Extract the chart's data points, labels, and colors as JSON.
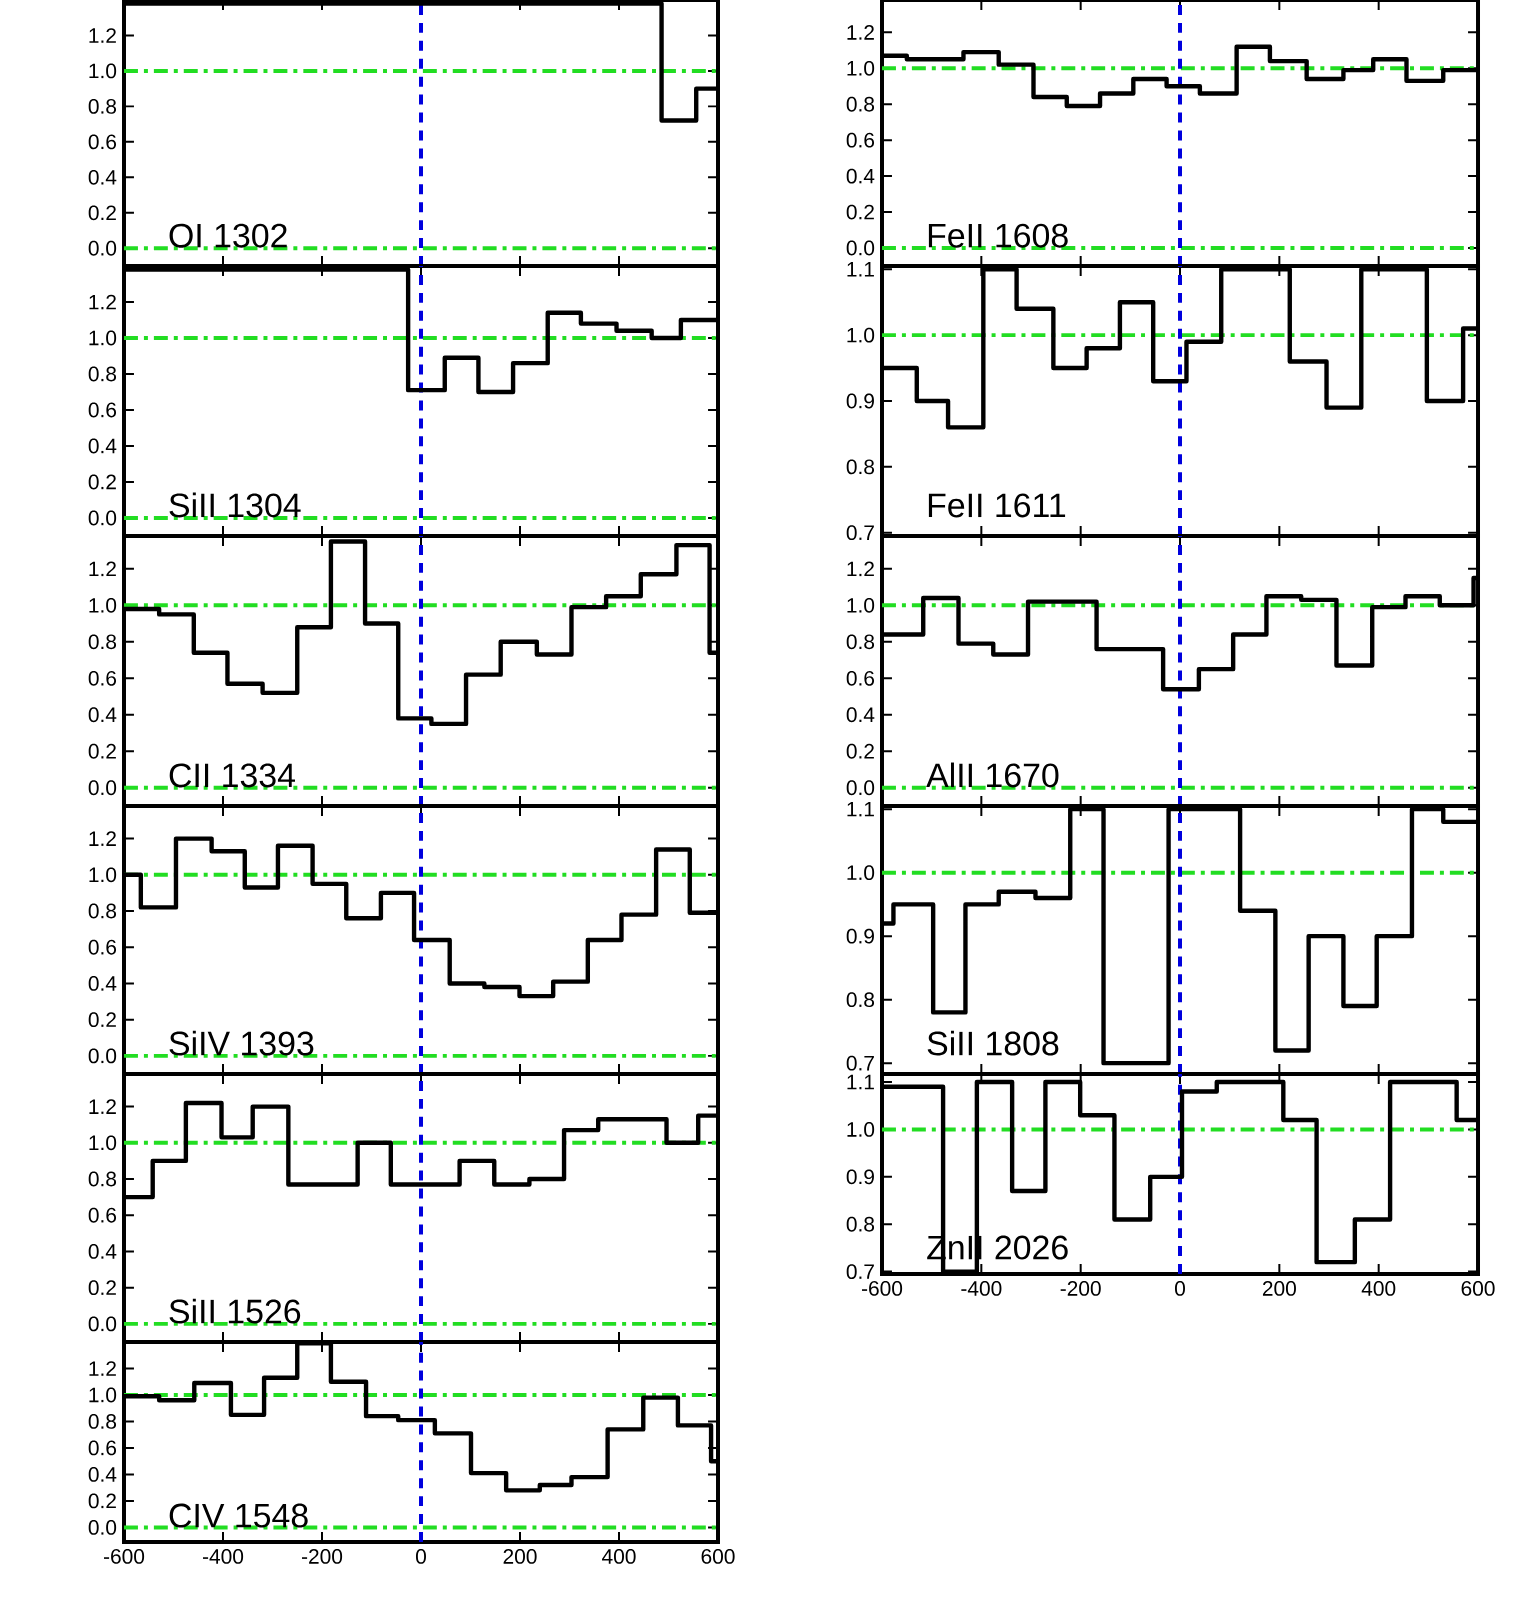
{
  "chart_data": [
    {
      "type": "step",
      "title": "OI 1302",
      "color": "#000000",
      "x": [
        -600,
        486,
        556,
        600
      ],
      "values": [
        1.38,
        0.72,
        0.9,
        0.9
      ],
      "xlim": [
        -600,
        600
      ],
      "ylim": [
        -0.1,
        1.4
      ],
      "tick_labels": "y",
      "xticks": [
        {
          "value": -600,
          "label": null
        },
        {
          "value": -400,
          "label": null
        },
        {
          "value": -200,
          "label": null
        },
        {
          "value": 0,
          "label": null
        },
        {
          "value": 200,
          "label": null
        },
        {
          "value": 400,
          "label": null
        },
        {
          "value": 600,
          "label": null
        }
      ],
      "yticks": [
        {
          "value": 0,
          "label": "0.0"
        },
        {
          "value": 0.2,
          "label": "0.2"
        },
        {
          "value": 0.4,
          "label": "0.4"
        },
        {
          "value": 0.6,
          "label": "0.6"
        },
        {
          "value": 0.8,
          "label": "0.8"
        },
        {
          "value": 1.0,
          "label": "1.0"
        },
        {
          "value": 1.2,
          "label": "1.2"
        }
      ],
      "ref_lines": [
        {
          "axis": "y",
          "value": 0,
          "color": "#22dd22",
          "line_style": "dashdot"
        },
        {
          "axis": "y",
          "value": 1,
          "color": "#22dd22",
          "line_style": "dashdot"
        },
        {
          "axis": "x",
          "value": 0,
          "color": "#0000dd",
          "line_style": "dashed"
        }
      ]
    },
    {
      "type": "step",
      "title": "SiII 1304",
      "color": "#000000",
      "x": [
        -600,
        -26,
        48,
        116,
        186,
        256,
        323,
        395,
        466,
        525,
        600
      ],
      "values": [
        1.38,
        0.71,
        0.89,
        0.7,
        0.86,
        1.14,
        1.08,
        1.04,
        1.0,
        1.1,
        1.1
      ],
      "xlim": [
        -600,
        600
      ],
      "ylim": [
        -0.1,
        1.4
      ],
      "tick_labels": "y",
      "xticks": [
        {
          "value": -600,
          "label": null
        },
        {
          "value": -400,
          "label": null
        },
        {
          "value": -200,
          "label": null
        },
        {
          "value": 0,
          "label": null
        },
        {
          "value": 200,
          "label": null
        },
        {
          "value": 400,
          "label": null
        },
        {
          "value": 600,
          "label": null
        }
      ],
      "yticks": [
        {
          "value": 0,
          "label": "0.0"
        },
        {
          "value": 0.2,
          "label": "0.2"
        },
        {
          "value": 0.4,
          "label": "0.4"
        },
        {
          "value": 0.6,
          "label": "0.6"
        },
        {
          "value": 0.8,
          "label": "0.8"
        },
        {
          "value": 1.0,
          "label": "1.0"
        },
        {
          "value": 1.2,
          "label": "1.2"
        }
      ],
      "ref_lines": [
        {
          "axis": "y",
          "value": 0,
          "color": "#22dd22",
          "line_style": "dashdot"
        },
        {
          "axis": "y",
          "value": 1,
          "color": "#22dd22",
          "line_style": "dashdot"
        },
        {
          "axis": "x",
          "value": 0,
          "color": "#0000dd",
          "line_style": "dashed"
        }
      ]
    },
    {
      "type": "step",
      "title": "CII 1334",
      "color": "#000000",
      "x": [
        -600,
        -529,
        -459,
        -391,
        -320,
        -250,
        -182,
        -113,
        -46,
        21,
        91,
        161,
        234,
        304,
        374,
        444,
        516,
        583,
        600
      ],
      "values": [
        0.98,
        0.95,
        0.74,
        0.57,
        0.52,
        0.88,
        1.35,
        0.9,
        0.38,
        0.35,
        0.62,
        0.8,
        0.73,
        0.99,
        1.05,
        1.17,
        1.33,
        0.74,
        0.74
      ],
      "xlim": [
        -600,
        600
      ],
      "ylim": [
        -0.1,
        1.38
      ],
      "tick_labels": "y",
      "xticks": [
        {
          "value": -600,
          "label": null
        },
        {
          "value": -400,
          "label": null
        },
        {
          "value": -200,
          "label": null
        },
        {
          "value": 0,
          "label": null
        },
        {
          "value": 200,
          "label": null
        },
        {
          "value": 400,
          "label": null
        },
        {
          "value": 600,
          "label": null
        }
      ],
      "yticks": [
        {
          "value": 0,
          "label": "0.0"
        },
        {
          "value": 0.2,
          "label": "0.2"
        },
        {
          "value": 0.4,
          "label": "0.4"
        },
        {
          "value": 0.6,
          "label": "0.6"
        },
        {
          "value": 0.8,
          "label": "0.8"
        },
        {
          "value": 1.0,
          "label": "1.0"
        },
        {
          "value": 1.2,
          "label": "1.2"
        }
      ],
      "ref_lines": [
        {
          "axis": "y",
          "value": 0,
          "color": "#22dd22",
          "line_style": "dashdot"
        },
        {
          "axis": "y",
          "value": 1,
          "color": "#22dd22",
          "line_style": "dashdot"
        },
        {
          "axis": "x",
          "value": 0,
          "color": "#0000dd",
          "line_style": "dashed"
        }
      ]
    },
    {
      "type": "step",
      "title": "SiIV 1393",
      "color": "#000000",
      "x": [
        -600,
        -566,
        -495,
        -423,
        -356,
        -289,
        -219,
        -151,
        -81,
        -14,
        58,
        128,
        199,
        267,
        337,
        405,
        475,
        543,
        600
      ],
      "values": [
        1.0,
        0.82,
        1.2,
        1.13,
        0.93,
        1.16,
        0.95,
        0.76,
        0.9,
        0.64,
        0.4,
        0.38,
        0.33,
        0.41,
        0.64,
        0.78,
        1.14,
        0.79,
        0.79
      ],
      "xlim": [
        -600,
        600
      ],
      "ylim": [
        -0.1,
        1.38
      ],
      "tick_labels": "y",
      "xticks": [
        {
          "value": -600,
          "label": null
        },
        {
          "value": -400,
          "label": null
        },
        {
          "value": -200,
          "label": null
        },
        {
          "value": 0,
          "label": null
        },
        {
          "value": 200,
          "label": null
        },
        {
          "value": 400,
          "label": null
        },
        {
          "value": 600,
          "label": null
        }
      ],
      "yticks": [
        {
          "value": 0,
          "label": "0.0"
        },
        {
          "value": 0.2,
          "label": "0.2"
        },
        {
          "value": 0.4,
          "label": "0.4"
        },
        {
          "value": 0.6,
          "label": "0.6"
        },
        {
          "value": 0.8,
          "label": "0.8"
        },
        {
          "value": 1.0,
          "label": "1.0"
        },
        {
          "value": 1.2,
          "label": "1.2"
        }
      ],
      "ref_lines": [
        {
          "axis": "y",
          "value": 0,
          "color": "#22dd22",
          "line_style": "dashdot"
        },
        {
          "axis": "y",
          "value": 1,
          "color": "#22dd22",
          "line_style": "dashdot"
        },
        {
          "axis": "x",
          "value": 0,
          "color": "#0000dd",
          "line_style": "dashed"
        }
      ]
    },
    {
      "type": "step",
      "title": "SiII 1526",
      "color": "#000000",
      "x": [
        -600,
        -542,
        -475,
        -403,
        -340,
        -268,
        -128,
        -61,
        78,
        148,
        219,
        289,
        358,
        496,
        560,
        600
      ],
      "values": [
        0.7,
        0.9,
        1.22,
        1.03,
        1.2,
        0.77,
        1.0,
        0.77,
        0.9,
        0.77,
        0.8,
        1.07,
        1.13,
        1.0,
        1.15,
        1.15
      ],
      "xlim": [
        -600,
        600
      ],
      "ylim": [
        -0.1,
        1.38
      ],
      "tick_labels": "y",
      "xticks": [
        {
          "value": -600,
          "label": null
        },
        {
          "value": -400,
          "label": null
        },
        {
          "value": -200,
          "label": null
        },
        {
          "value": 0,
          "label": null
        },
        {
          "value": 200,
          "label": null
        },
        {
          "value": 400,
          "label": null
        },
        {
          "value": 600,
          "label": null
        }
      ],
      "yticks": [
        {
          "value": 0,
          "label": "0.0"
        },
        {
          "value": 0.2,
          "label": "0.2"
        },
        {
          "value": 0.4,
          "label": "0.4"
        },
        {
          "value": 0.6,
          "label": "0.6"
        },
        {
          "value": 0.8,
          "label": "0.8"
        },
        {
          "value": 1.0,
          "label": "1.0"
        },
        {
          "value": 1.2,
          "label": "1.2"
        }
      ],
      "ref_lines": [
        {
          "axis": "y",
          "value": 0,
          "color": "#22dd22",
          "line_style": "dashdot"
        },
        {
          "axis": "y",
          "value": 1,
          "color": "#22dd22",
          "line_style": "dashdot"
        },
        {
          "axis": "x",
          "value": 0,
          "color": "#0000dd",
          "line_style": "dashed"
        }
      ]
    },
    {
      "type": "step",
      "title": "CIV 1548",
      "color": "#000000",
      "x": [
        -600,
        -529,
        -458,
        -384,
        -317,
        -250,
        -182,
        -111,
        -46,
        28,
        101,
        172,
        240,
        304,
        377,
        449,
        519,
        586,
        600
      ],
      "values": [
        0.99,
        0.96,
        1.09,
        0.85,
        1.13,
        1.39,
        1.1,
        0.84,
        0.81,
        0.71,
        0.41,
        0.28,
        0.32,
        0.38,
        0.74,
        0.98,
        0.77,
        0.5,
        0.5
      ],
      "xlim": [
        -600,
        600
      ],
      "ylim": [
        -0.11,
        1.4
      ],
      "xticks": [
        {
          "value": -600,
          "label": "-600"
        },
        {
          "value": -400,
          "label": "-400"
        },
        {
          "value": -200,
          "label": "-200"
        },
        {
          "value": 0,
          "label": "0"
        },
        {
          "value": 200,
          "label": "200"
        },
        {
          "value": 400,
          "label": "400"
        },
        {
          "value": 600,
          "label": "600"
        }
      ],
      "yticks": [
        {
          "value": 0,
          "label": "0.0"
        },
        {
          "value": 0.2,
          "label": "0.2"
        },
        {
          "value": 0.4,
          "label": "0.4"
        },
        {
          "value": 0.6,
          "label": "0.6"
        },
        {
          "value": 0.8,
          "label": "0.8"
        },
        {
          "value": 1.0,
          "label": "1.0"
        },
        {
          "value": 1.2,
          "label": "1.2"
        }
      ],
      "ref_lines": [
        {
          "axis": "y",
          "value": 0,
          "color": "#22dd22",
          "line_style": "dashdot"
        },
        {
          "axis": "y",
          "value": 1,
          "color": "#22dd22",
          "line_style": "dashdot"
        },
        {
          "axis": "x",
          "value": 0,
          "color": "#0000dd",
          "line_style": "dashed"
        }
      ]
    },
    {
      "type": "step",
      "title": "FeII 1608",
      "color": "#000000",
      "x": [
        -600,
        -550,
        -436,
        -365,
        -295,
        -228,
        -161,
        -94,
        -27,
        40,
        114,
        181,
        255,
        329,
        389,
        456,
        530,
        600
      ],
      "values": [
        1.07,
        1.05,
        1.09,
        1.02,
        0.84,
        0.79,
        0.86,
        0.94,
        0.9,
        0.86,
        1.12,
        1.04,
        0.94,
        0.99,
        1.05,
        0.93,
        0.99,
        0.99
      ],
      "xlim": [
        -600,
        600
      ],
      "ylim": [
        -0.1,
        1.38
      ],
      "tick_labels": "y",
      "xticks": [
        {
          "value": -600,
          "label": null
        },
        {
          "value": -400,
          "label": null
        },
        {
          "value": -200,
          "label": null
        },
        {
          "value": 0,
          "label": null
        },
        {
          "value": 200,
          "label": null
        },
        {
          "value": 400,
          "label": null
        },
        {
          "value": 600,
          "label": null
        }
      ],
      "yticks": [
        {
          "value": 0,
          "label": "0.0"
        },
        {
          "value": 0.2,
          "label": "0.2"
        },
        {
          "value": 0.4,
          "label": "0.4"
        },
        {
          "value": 0.6,
          "label": "0.6"
        },
        {
          "value": 0.8,
          "label": "0.8"
        },
        {
          "value": 1.0,
          "label": "1.0"
        },
        {
          "value": 1.2,
          "label": "1.2"
        }
      ],
      "ref_lines": [
        {
          "axis": "y",
          "value": 0,
          "color": "#22dd22",
          "line_style": "dashdot"
        },
        {
          "axis": "y",
          "value": 1,
          "color": "#22dd22",
          "line_style": "dashdot"
        },
        {
          "axis": "x",
          "value": 0,
          "color": "#0000dd",
          "line_style": "dashed"
        }
      ]
    },
    {
      "type": "step",
      "title": "FeII 1611",
      "color": "#000000",
      "x": [
        -600,
        -530,
        -467,
        -396,
        -329,
        -255,
        -188,
        -121,
        -54,
        13,
        83,
        148,
        221,
        295,
        365,
        497,
        570,
        600
      ],
      "values": [
        0.95,
        0.9,
        0.86,
        1.1,
        1.04,
        0.95,
        0.98,
        1.05,
        0.93,
        0.99,
        1.1,
        1.1,
        0.96,
        0.89,
        1.1,
        0.9,
        1.01,
        1.01
      ],
      "xlim": [
        -600,
        600
      ],
      "ylim": [
        0.695,
        1.105
      ],
      "tick_labels": "y",
      "xticks": [
        {
          "value": -600,
          "label": null
        },
        {
          "value": -400,
          "label": null
        },
        {
          "value": -200,
          "label": null
        },
        {
          "value": 0,
          "label": null
        },
        {
          "value": 200,
          "label": null
        },
        {
          "value": 400,
          "label": null
        },
        {
          "value": 600,
          "label": null
        }
      ],
      "yticks": [
        {
          "value": 0.7,
          "label": "0.7"
        },
        {
          "value": 0.8,
          "label": "0.8"
        },
        {
          "value": 0.9,
          "label": "0.9"
        },
        {
          "value": 1.0,
          "label": "1.0"
        },
        {
          "value": 1.1,
          "label": "1.1"
        }
      ],
      "ref_lines": [
        {
          "axis": "y",
          "value": 1,
          "color": "#22dd22",
          "line_style": "dashdot"
        },
        {
          "axis": "x",
          "value": 0,
          "color": "#0000dd",
          "line_style": "dashed"
        }
      ]
    },
    {
      "type": "step",
      "title": "AlII 1670",
      "color": "#000000",
      "x": [
        -600,
        -517,
        -446,
        -376,
        -306,
        -168,
        -34,
        38,
        107,
        174,
        244,
        315,
        387,
        454,
        523,
        591,
        600
      ],
      "values": [
        0.84,
        1.04,
        0.79,
        0.73,
        1.02,
        0.76,
        0.54,
        0.65,
        0.84,
        1.05,
        1.03,
        0.67,
        0.99,
        1.05,
        1.0,
        1.15,
        1.15
      ],
      "xlim": [
        -600,
        600
      ],
      "ylim": [
        -0.1,
        1.38
      ],
      "tick_labels": "y",
      "xticks": [
        {
          "value": -600,
          "label": null
        },
        {
          "value": -400,
          "label": null
        },
        {
          "value": -200,
          "label": null
        },
        {
          "value": 0,
          "label": null
        },
        {
          "value": 200,
          "label": null
        },
        {
          "value": 400,
          "label": null
        },
        {
          "value": 600,
          "label": null
        }
      ],
      "yticks": [
        {
          "value": 0,
          "label": "0.0"
        },
        {
          "value": 0.2,
          "label": "0.2"
        },
        {
          "value": 0.4,
          "label": "0.4"
        },
        {
          "value": 0.6,
          "label": "0.6"
        },
        {
          "value": 0.8,
          "label": "0.8"
        },
        {
          "value": 1.0,
          "label": "1.0"
        },
        {
          "value": 1.2,
          "label": "1.2"
        }
      ],
      "ref_lines": [
        {
          "axis": "y",
          "value": 0,
          "color": "#22dd22",
          "line_style": "dashdot"
        },
        {
          "axis": "y",
          "value": 1,
          "color": "#22dd22",
          "line_style": "dashdot"
        },
        {
          "axis": "x",
          "value": 0,
          "color": "#0000dd",
          "line_style": "dashed"
        }
      ]
    },
    {
      "type": "step",
      "title": "SiII 1808",
      "color": "#000000",
      "x": [
        -600,
        -577,
        -497,
        -432,
        -365,
        -291,
        -221,
        -154,
        -23,
        121,
        192,
        259,
        329,
        396,
        467,
        530,
        600
      ],
      "values": [
        0.92,
        0.95,
        0.78,
        0.95,
        0.97,
        0.96,
        1.1,
        0.7,
        1.1,
        0.94,
        0.72,
        0.9,
        0.79,
        0.9,
        1.1,
        1.08,
        1.08
      ],
      "xlim": [
        -600,
        600
      ],
      "ylim": [
        0.683,
        1.105
      ],
      "tick_labels": "y",
      "xticks": [
        {
          "value": -600,
          "label": null
        },
        {
          "value": -400,
          "label": null
        },
        {
          "value": -200,
          "label": null
        },
        {
          "value": 0,
          "label": null
        },
        {
          "value": 200,
          "label": null
        },
        {
          "value": 400,
          "label": null
        },
        {
          "value": 600,
          "label": null
        }
      ],
      "yticks": [
        {
          "value": 0.7,
          "label": "0.7"
        },
        {
          "value": 0.8,
          "label": "0.8"
        },
        {
          "value": 0.9,
          "label": "0.9"
        },
        {
          "value": 1.0,
          "label": "1.0"
        },
        {
          "value": 1.1,
          "label": "1.1"
        }
      ],
      "ref_lines": [
        {
          "axis": "y",
          "value": 1,
          "color": "#22dd22",
          "line_style": "dashdot"
        },
        {
          "axis": "x",
          "value": 0,
          "color": "#0000dd",
          "line_style": "dashed"
        }
      ]
    },
    {
      "type": "step",
      "title": "ZnII 2026",
      "color": "#000000",
      "x": [
        -600,
        -477,
        -409,
        -338,
        -271,
        -201,
        -132,
        -60,
        4,
        74,
        208,
        275,
        352,
        423,
        557,
        600
      ],
      "values": [
        1.09,
        0.7,
        1.1,
        0.87,
        1.1,
        1.03,
        0.81,
        0.9,
        1.08,
        1.1,
        1.02,
        0.72,
        0.81,
        1.1,
        1.02,
        1.02
      ],
      "xlim": [
        -600,
        600
      ],
      "ylim": [
        0.695,
        1.117
      ],
      "xticks": [
        {
          "value": -600,
          "label": "-600"
        },
        {
          "value": -400,
          "label": "-400"
        },
        {
          "value": -200,
          "label": "-200"
        },
        {
          "value": 0,
          "label": "0"
        },
        {
          "value": 200,
          "label": "200"
        },
        {
          "value": 400,
          "label": "400"
        },
        {
          "value": 600,
          "label": "600"
        }
      ],
      "yticks": [
        {
          "value": 0.7,
          "label": "0.7"
        },
        {
          "value": 0.8,
          "label": "0.8"
        },
        {
          "value": 0.9,
          "label": "0.9"
        },
        {
          "value": 1.0,
          "label": "1.0"
        },
        {
          "value": 1.1,
          "label": "1.1"
        }
      ],
      "ref_lines": [
        {
          "axis": "y",
          "value": 1,
          "color": "#22dd22",
          "line_style": "dashdot"
        },
        {
          "axis": "x",
          "value": 0,
          "color": "#0000dd",
          "line_style": "dashed"
        }
      ]
    }
  ]
}
